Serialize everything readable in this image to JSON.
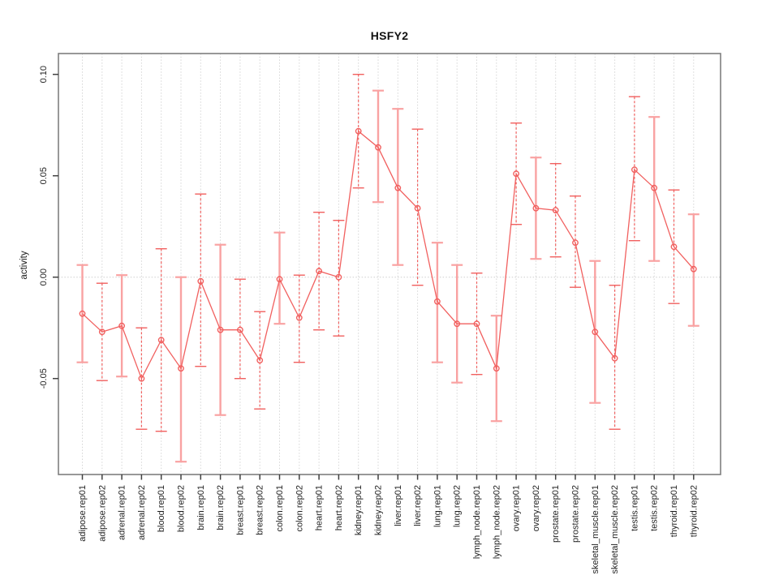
{
  "chart_data": {
    "type": "line",
    "subtype": "points-with-error-bars",
    "title": "HSFY2",
    "ylabel": "activity",
    "xlabel": "",
    "legend": "none",
    "grid": "vertical dotted gridline at every category; dotted horizontal line at y=0",
    "ylim": [
      -0.097,
      0.11
    ],
    "y_ticks": [
      "0.10",
      "0.05",
      "0.00",
      "-0.05"
    ],
    "y_tick_values": [
      0.1,
      0.05,
      0.0,
      -0.05
    ],
    "categories": [
      "adipose.rep01",
      "adipose.rep02",
      "adrenal.rep01",
      "adrenal.rep02",
      "blood.rep01",
      "blood.rep02",
      "brain.rep01",
      "brain.rep02",
      "breast.rep01",
      "breast.rep02",
      "colon.rep01",
      "colon.rep02",
      "heart.rep01",
      "heart.rep02",
      "kidney.rep01",
      "kidney.rep02",
      "liver.rep01",
      "liver.rep02",
      "lung.rep01",
      "lung.rep02",
      "lymph_node.rep01",
      "lymph_node.rep02",
      "ovary.rep01",
      "ovary.rep02",
      "prostate.rep01",
      "prostate.rep02",
      "skeletal_muscle.rep01",
      "skeletal_muscle.rep02",
      "testis.rep01",
      "testis.rep02",
      "thyroid.rep01",
      "thyroid.rep02"
    ],
    "values": [
      -0.018,
      -0.027,
      -0.024,
      -0.05,
      -0.031,
      -0.045,
      -0.002,
      -0.026,
      -0.026,
      -0.041,
      -0.001,
      -0.02,
      0.003,
      0.0,
      0.072,
      0.064,
      0.044,
      0.034,
      -0.012,
      -0.023,
      -0.023,
      -0.045,
      0.051,
      0.034,
      0.033,
      0.017,
      -0.027,
      -0.04,
      0.053,
      0.044,
      0.015,
      0.004
    ],
    "error_low": [
      -0.042,
      -0.051,
      -0.049,
      -0.075,
      -0.076,
      -0.091,
      -0.044,
      -0.068,
      -0.05,
      -0.065,
      -0.023,
      -0.042,
      -0.026,
      -0.029,
      0.044,
      0.037,
      0.006,
      -0.004,
      -0.042,
      -0.052,
      -0.048,
      -0.071,
      0.026,
      0.009,
      0.01,
      -0.005,
      -0.062,
      -0.075,
      0.018,
      0.008,
      -0.013,
      -0.024
    ],
    "error_high": [
      0.006,
      -0.003,
      0.001,
      -0.025,
      0.014,
      0.0,
      0.041,
      0.016,
      -0.001,
      -0.017,
      0.022,
      0.001,
      0.032,
      0.028,
      0.1,
      0.092,
      0.083,
      0.073,
      0.017,
      0.006,
      0.002,
      -0.019,
      0.076,
      0.059,
      0.056,
      0.04,
      0.008,
      -0.004,
      0.089,
      0.079,
      0.043,
      0.031
    ],
    "bar_styles": [
      "solid",
      "dashed",
      "solid",
      "dashed",
      "dashed",
      "solid",
      "dashed",
      "solid",
      "dashed",
      "dashed",
      "solid",
      "dashed",
      "dashed",
      "dashed",
      "dashed",
      "solid",
      "solid",
      "dashed",
      "solid",
      "solid",
      "dashed",
      "solid",
      "dashed",
      "solid",
      "dashed",
      "dashed",
      "solid",
      "dashed",
      "dashed",
      "solid",
      "dashed",
      "solid"
    ]
  },
  "colors": {
    "series": "#f1605f",
    "error_bar_solid": "#f9a2a2",
    "error_bar_dashed": "#f1605f",
    "gridline": "#d5d5d5",
    "zero_line": "#cdcdcd",
    "plot_border": "#7e7e7e",
    "tick": "#404040",
    "text": "#1f1f1f",
    "background": "#ffffff"
  }
}
